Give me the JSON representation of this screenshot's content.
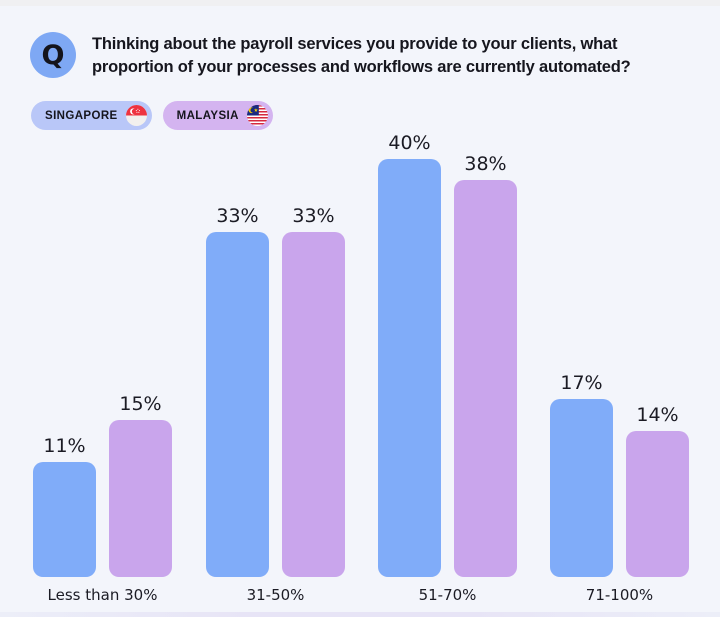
{
  "header": {
    "q_badge": "Q",
    "question_line1": "Thinking about the payroll services you provide to your clients, what",
    "question_line2": "proportion of your processes and workflows are currently automated?"
  },
  "legend": {
    "items": [
      {
        "label": "SINGAPORE",
        "flag_icon": "singapore-flag",
        "pill_color": "#b9c7f8"
      },
      {
        "label": "MALAYSIA",
        "flag_icon": "malaysia-flag",
        "pill_color": "#d4b4f0"
      }
    ]
  },
  "colors": {
    "background": "#f3f5fb",
    "q_badge_bg": "#7ea8f4",
    "singapore_bar": "#80acf9",
    "malaysia_bar": "#c9a5ec",
    "text": "#1b1b24",
    "bottom_strip": "#e7e4f6"
  },
  "chart_data": {
    "type": "bar",
    "categories": [
      "Less than 30%",
      "31-50%",
      "51-70%",
      "71-100%"
    ],
    "series": [
      {
        "name": "Singapore",
        "color": "#80acf9",
        "values": [
          11,
          33,
          40,
          17
        ]
      },
      {
        "name": "Malaysia",
        "color": "#c9a5ec",
        "values": [
          15,
          33,
          38,
          14
        ]
      }
    ],
    "value_suffix": "%",
    "ylim": [
      0,
      43
    ],
    "grid": false,
    "axes_shown": false,
    "legend_position": "top-left",
    "value_labels": "above-bars"
  }
}
